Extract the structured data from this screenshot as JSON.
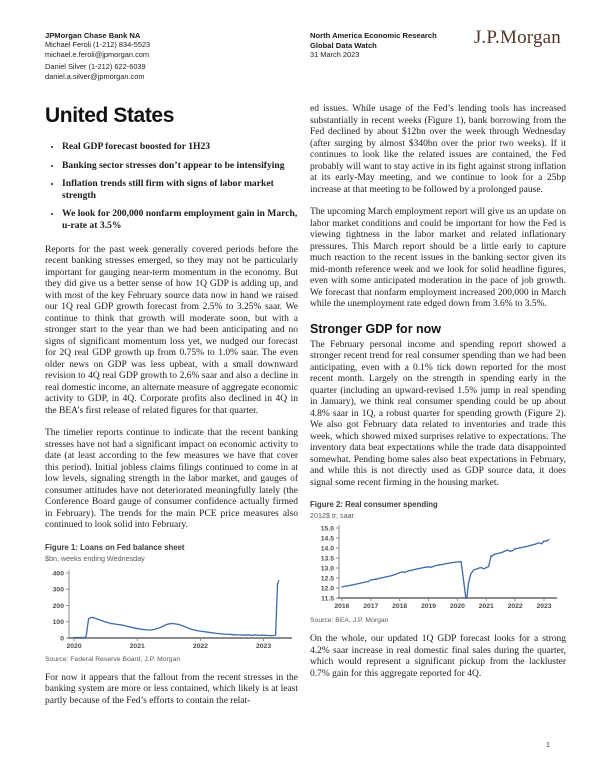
{
  "header": {
    "bank": "JPMorgan Chase Bank NA",
    "contacts": [
      {
        "name_phone": "Michael Feroli (1-212) 834-5523",
        "email": "michael.e.feroli@jpmorgan.com"
      },
      {
        "name_phone": "Daniel Silver (1-212) 622-6039",
        "email": "daniel.a.silver@jpmorgan.com"
      }
    ],
    "research_group": "North America Economic Research",
    "publication": "Global Data Watch",
    "date": "31 March 2023",
    "logo_text": "J.P.Morgan"
  },
  "page": {
    "title": "United States",
    "number": "1"
  },
  "bullets": [
    "Real GDP forecast boosted for 1H23",
    "Banking sector stresses don’t appear to be intensifying",
    "Inflation trends still firm with signs of labor market strength",
    "We look for 200,000 nonfarm employment gain in March, u-rate at 3.5%"
  ],
  "left_column": {
    "p1": "Reports for the past week generally covered periods before the recent banking stresses emerged, so they may not be particularly important for gauging near-term momentum in the economy. But they did give us a better sense of how 1Q GDP is adding up, and with most of the key February source data now in hand we raised our 1Q real GDP growth forecast from 2.5% to 3.25% saar. We continue to think that growth will moderate soon, but with a stronger start to the year than we had been anticipating and no signs of significant momentum loss yet, we nudged our forecast for 2Q real GDP growth up from 0.75% to 1.0% saar. The even older news on GDP was less upbeat, with a small downward revision to 4Q real GDP growth to 2.6% saar and also a decline in real domestic income, an alternate measure of aggregate economic activity to GDP, in 4Q. Corporate profits also declined in 4Q in the BEA’s first release of related figures for that quarter.",
    "p2": "The timelier reports continue to indicate that the recent banking stresses have not had a significant impact on economic activity to date (at least according to the few measures we have that cover this period). Initial jobless claims filings continued to come in at low levels, signaling strength in the labor market, and gauges of consumer attitudes have not deteriorated meaningfully lately (the Conference Board gauge of consumer confidence actually firmed in February). The trends for the main PCE price measures also continued to look solid into February.",
    "p3": "For now it appears that the fallout from the recent stresses in the banking system are more or less contained, which likely is at least partly because of the Fed’s efforts to contain the relat-"
  },
  "right_column": {
    "p1": "ed issues. While usage of the Fed’s lending tools has increased substantially in recent weeks (Figure 1), bank borrowing from the Fed declined by about $12bn over the week through Wednesday (after surging by almost $340bn over the prior two weeks). If it continues to look like the related issues are contained, the Fed probably will want to stay active in its fight against strong inflation at its early-May meeting, and we continue to look for a 25bp increase at that meeting to be followed by a prolonged pause.",
    "p2": "The upcoming March employment report will give us an update on labor market conditions and could be important for how the Fed is viewing tightness in the labor market and related inflationary pressures. This March report should be a little early to capture much reaction to the recent issues in the banking sector given its mid-month reference week and we look for solid headline figures, even with some anticipated moderation in the pace of job growth. We forecast that nonfarm employment increased 200,000 in March while the unemployment rate edged down from 3.6% to 3.5%.",
    "section_heading": "Stronger GDP for now",
    "p3": "The February personal income and spending report showed a stronger recent trend for real consumer spending than we had been anticipating, even with a 0.1% tick down reported for the most recent month. Largely on the strength in spending early in the quarter (including an upward-revised 1.5% jump in real spending in January), we think real consumer spending could be up about 4.8% saar in 1Q, a robust quarter for spending growth (Figure 2). We also got February data related to inventories and trade this week, which showed mixed surprises relative to expectations. The inventory data beat expectations while the trade data disappointed somewhat. Pending home sales also beat expectations in February, and while this is not directly used as GDP source data, it does signal some recent firming in the housing market.",
    "p4": "On the whole, our updated 1Q GDP forecast looks for a strong 4.2% saar increase in real domestic final sales during the quarter, which would represent a significant pickup from the lackluster 0.7% gain for this aggregate reported for 4Q."
  },
  "chart_data": [
    {
      "type": "line",
      "title": "Figure 1: Loans on Fed balance sheet",
      "subtitle": "$bn, weeks ending Wednesday",
      "source": "Source: Federal Reserve Board, J.P. Morgan",
      "line_color": "#3a68a8",
      "xlim": [
        2019.92,
        2023.45
      ],
      "ylim": [
        0,
        400
      ],
      "ytick_values": [
        0,
        100,
        200,
        300,
        400
      ],
      "ytick_labels": [
        "0",
        "100",
        "200",
        "300",
        "400"
      ],
      "xtick_values": [
        2020,
        2021,
        2022,
        2023
      ],
      "xtick_labels": [
        "2020",
        "2021",
        "2022",
        "2023"
      ],
      "series": [
        {
          "name": "Loans on Fed balance sheet ($bn)",
          "points": [
            [
              2020.0,
              3
            ],
            [
              2020.06,
              3
            ],
            [
              2020.12,
              3
            ],
            [
              2020.17,
              3
            ],
            [
              2020.19,
              10
            ],
            [
              2020.23,
              118
            ],
            [
              2020.27,
              127
            ],
            [
              2020.31,
              125
            ],
            [
              2020.35,
              119
            ],
            [
              2020.4,
              112
            ],
            [
              2020.44,
              107
            ],
            [
              2020.48,
              101
            ],
            [
              2020.52,
              97
            ],
            [
              2020.56,
              92
            ],
            [
              2020.6,
              88
            ],
            [
              2020.65,
              86
            ],
            [
              2020.69,
              83
            ],
            [
              2020.73,
              81
            ],
            [
              2020.77,
              79
            ],
            [
              2020.81,
              75
            ],
            [
              2020.85,
              71
            ],
            [
              2020.9,
              67
            ],
            [
              2020.94,
              63
            ],
            [
              2020.98,
              60
            ],
            [
              2021.02,
              57
            ],
            [
              2021.06,
              54
            ],
            [
              2021.1,
              52
            ],
            [
              2021.15,
              50
            ],
            [
              2021.19,
              49
            ],
            [
              2021.23,
              50
            ],
            [
              2021.27,
              53
            ],
            [
              2021.31,
              57
            ],
            [
              2021.35,
              63
            ],
            [
              2021.4,
              71
            ],
            [
              2021.44,
              79
            ],
            [
              2021.48,
              85
            ],
            [
              2021.52,
              88
            ],
            [
              2021.56,
              89
            ],
            [
              2021.6,
              87
            ],
            [
              2021.65,
              84
            ],
            [
              2021.69,
              79
            ],
            [
              2021.73,
              73
            ],
            [
              2021.77,
              67
            ],
            [
              2021.81,
              61
            ],
            [
              2021.85,
              55
            ],
            [
              2021.9,
              50
            ],
            [
              2021.94,
              46
            ],
            [
              2021.98,
              43
            ],
            [
              2022.04,
              40
            ],
            [
              2022.12,
              36
            ],
            [
              2022.21,
              31
            ],
            [
              2022.29,
              27
            ],
            [
              2022.37,
              24
            ],
            [
              2022.46,
              22
            ],
            [
              2022.54,
              20
            ],
            [
              2022.62,
              19
            ],
            [
              2022.71,
              17
            ],
            [
              2022.75,
              20
            ],
            [
              2022.81,
              16
            ],
            [
              2022.87,
              19
            ],
            [
              2022.92,
              16
            ],
            [
              2022.98,
              18
            ],
            [
              2023.04,
              16
            ],
            [
              2023.1,
              15
            ],
            [
              2023.15,
              15
            ],
            [
              2023.19,
              18
            ],
            [
              2023.22,
              330
            ],
            [
              2023.24,
              352
            ]
          ]
        }
      ]
    },
    {
      "type": "line",
      "title": "Figure 2: Real consumer spending",
      "subtitle": "2012$ tr, saar",
      "source": "Source: BEA, J.P. Morgan",
      "line_color": "#3a68a8",
      "xlim": [
        2015.9,
        2023.45
      ],
      "ylim": [
        11.5,
        15.0
      ],
      "ytick_values": [
        11.5,
        12.0,
        12.5,
        13.0,
        13.5,
        14.0,
        14.5,
        15.0
      ],
      "ytick_labels": [
        "11.5",
        "12.0",
        "12.5",
        "13.0",
        "13.5",
        "14.0",
        "14.5",
        "15.0"
      ],
      "xtick_values": [
        2016,
        2017,
        2018,
        2019,
        2020,
        2021,
        2022,
        2023
      ],
      "xtick_labels": [
        "2016",
        "2017",
        "2018",
        "2019",
        "2020",
        "2021",
        "2022",
        "2023"
      ],
      "series": [
        {
          "name": "Real consumer spending (2012$ tr, saar)",
          "points": [
            [
              2016.0,
              12.05
            ],
            [
              2016.08,
              12.08
            ],
            [
              2016.17,
              12.1
            ],
            [
              2016.25,
              12.12
            ],
            [
              2016.33,
              12.15
            ],
            [
              2016.42,
              12.16
            ],
            [
              2016.5,
              12.2
            ],
            [
              2016.58,
              12.22
            ],
            [
              2016.67,
              12.25
            ],
            [
              2016.75,
              12.28
            ],
            [
              2016.83,
              12.3
            ],
            [
              2016.92,
              12.33
            ],
            [
              2017.0,
              12.4
            ],
            [
              2017.08,
              12.42
            ],
            [
              2017.17,
              12.44
            ],
            [
              2017.25,
              12.46
            ],
            [
              2017.33,
              12.5
            ],
            [
              2017.42,
              12.52
            ],
            [
              2017.5,
              12.55
            ],
            [
              2017.58,
              12.57
            ],
            [
              2017.67,
              12.6
            ],
            [
              2017.75,
              12.63
            ],
            [
              2017.83,
              12.67
            ],
            [
              2017.92,
              12.72
            ],
            [
              2018.0,
              12.76
            ],
            [
              2018.08,
              12.81
            ],
            [
              2018.17,
              12.78
            ],
            [
              2018.25,
              12.83
            ],
            [
              2018.33,
              12.87
            ],
            [
              2018.42,
              12.89
            ],
            [
              2018.5,
              12.92
            ],
            [
              2018.58,
              12.95
            ],
            [
              2018.67,
              12.97
            ],
            [
              2018.75,
              13.0
            ],
            [
              2018.83,
              13.02
            ],
            [
              2018.92,
              13.04
            ],
            [
              2019.0,
              13.06
            ],
            [
              2019.08,
              13.03
            ],
            [
              2019.17,
              13.08
            ],
            [
              2019.25,
              13.12
            ],
            [
              2019.33,
              13.14
            ],
            [
              2019.42,
              13.16
            ],
            [
              2019.5,
              13.18
            ],
            [
              2019.58,
              13.21
            ],
            [
              2019.67,
              13.23
            ],
            [
              2019.75,
              13.25
            ],
            [
              2019.83,
              13.27
            ],
            [
              2019.92,
              13.29
            ],
            [
              2020.0,
              13.3
            ],
            [
              2020.08,
              13.31
            ],
            [
              2020.13,
              13.32
            ],
            [
              2020.21,
              12.45
            ],
            [
              2020.29,
              11.5
            ],
            [
              2020.33,
              11.52
            ],
            [
              2020.38,
              12.2
            ],
            [
              2020.46,
              12.7
            ],
            [
              2020.54,
              12.85
            ],
            [
              2020.58,
              12.92
            ],
            [
              2020.67,
              12.95
            ],
            [
              2020.75,
              13.0
            ],
            [
              2020.83,
              13.02
            ],
            [
              2020.92,
              12.96
            ],
            [
              2021.0,
              13.02
            ],
            [
              2021.08,
              13.08
            ],
            [
              2021.17,
              13.62
            ],
            [
              2021.21,
              13.6
            ],
            [
              2021.25,
              13.66
            ],
            [
              2021.33,
              13.7
            ],
            [
              2021.42,
              13.73
            ],
            [
              2021.5,
              13.76
            ],
            [
              2021.58,
              13.8
            ],
            [
              2021.67,
              13.86
            ],
            [
              2021.75,
              13.9
            ],
            [
              2021.83,
              13.83
            ],
            [
              2021.92,
              13.87
            ],
            [
              2022.0,
              13.96
            ],
            [
              2022.08,
              13.98
            ],
            [
              2022.17,
              14.01
            ],
            [
              2022.25,
              14.03
            ],
            [
              2022.33,
              14.06
            ],
            [
              2022.42,
              14.08
            ],
            [
              2022.5,
              14.11
            ],
            [
              2022.58,
              14.15
            ],
            [
              2022.67,
              14.18
            ],
            [
              2022.75,
              14.22
            ],
            [
              2022.83,
              14.26
            ],
            [
              2022.92,
              14.21
            ],
            [
              2023.0,
              14.36
            ],
            [
              2023.08,
              14.33
            ],
            [
              2023.17,
              14.43
            ]
          ]
        }
      ]
    }
  ]
}
